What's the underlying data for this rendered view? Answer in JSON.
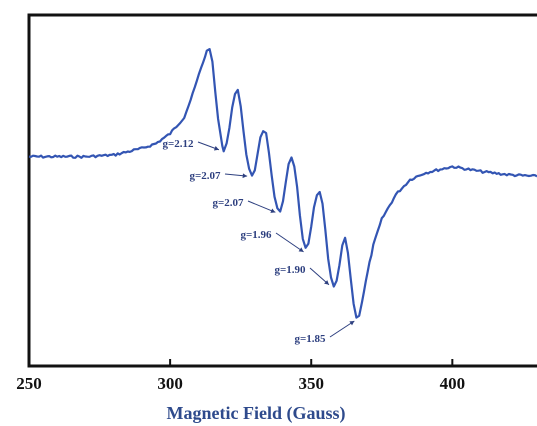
{
  "chart_data": {
    "type": "line",
    "title": "",
    "xlabel": "Magnetic Field (Gauss)",
    "ylabel": "",
    "xlim": [
      250,
      430
    ],
    "ylim": [
      -1.0,
      1.0
    ],
    "x_ticks": [
      250,
      300,
      350,
      400
    ],
    "x_tick_labels": [
      "250",
      "300",
      "350",
      "400"
    ],
    "grid": false,
    "legend": "none",
    "line_color": "#3355b3",
    "series": [
      {
        "values_note_units": "x in Gauss, y in relative EPR intensity",
        "x": [
          250,
          260,
          270,
          280,
          290,
          295,
          300,
          305,
          308,
          311,
          313,
          314,
          315,
          316,
          317,
          318,
          318.5,
          319,
          320,
          321,
          322,
          323,
          324,
          325,
          326,
          327,
          328,
          329,
          330,
          331,
          332,
          333,
          334,
          335,
          336,
          337,
          338,
          339,
          340,
          341,
          342,
          343,
          344,
          345,
          346,
          347,
          348,
          349,
          350,
          351,
          352,
          353,
          354,
          355,
          356,
          357,
          358,
          359,
          360,
          361,
          362,
          363,
          364,
          365,
          366,
          367,
          368,
          370,
          372,
          375,
          380,
          385,
          390,
          395,
          400,
          410,
          420,
          430
        ],
        "y": [
          0.06,
          0.06,
          0.06,
          0.07,
          0.11,
          0.14,
          0.2,
          0.3,
          0.44,
          0.6,
          0.7,
          0.72,
          0.63,
          0.45,
          0.29,
          0.18,
          0.12,
          0.1,
          0.14,
          0.24,
          0.36,
          0.44,
          0.46,
          0.37,
          0.22,
          0.07,
          -0.02,
          -0.06,
          -0.02,
          0.08,
          0.18,
          0.22,
          0.2,
          0.09,
          -0.06,
          -0.19,
          -0.26,
          -0.28,
          -0.21,
          -0.09,
          0.02,
          0.05,
          0.0,
          -0.13,
          -0.3,
          -0.44,
          -0.5,
          -0.47,
          -0.37,
          -0.25,
          -0.17,
          -0.16,
          -0.23,
          -0.39,
          -0.56,
          -0.68,
          -0.73,
          -0.7,
          -0.6,
          -0.48,
          -0.44,
          -0.52,
          -0.68,
          -0.83,
          -0.92,
          -0.9,
          -0.82,
          -0.64,
          -0.48,
          -0.32,
          -0.17,
          -0.08,
          -0.04,
          -0.02,
          0.0,
          -0.03,
          -0.05,
          -0.06
        ]
      }
    ],
    "annotations": [
      {
        "text": "g=2.12",
        "x": 318,
        "y": 0.12
      },
      {
        "text": "g=2.07",
        "x": 328,
        "y": -0.04
      },
      {
        "text": "g=2.07",
        "x": 338,
        "y": -0.26
      },
      {
        "text": "g=1.96",
        "x": 348,
        "y": -0.5
      },
      {
        "text": "g=1.90",
        "x": 357,
        "y": -0.7
      },
      {
        "text": "g=1.85",
        "x": 366,
        "y": -0.92
      }
    ]
  }
}
